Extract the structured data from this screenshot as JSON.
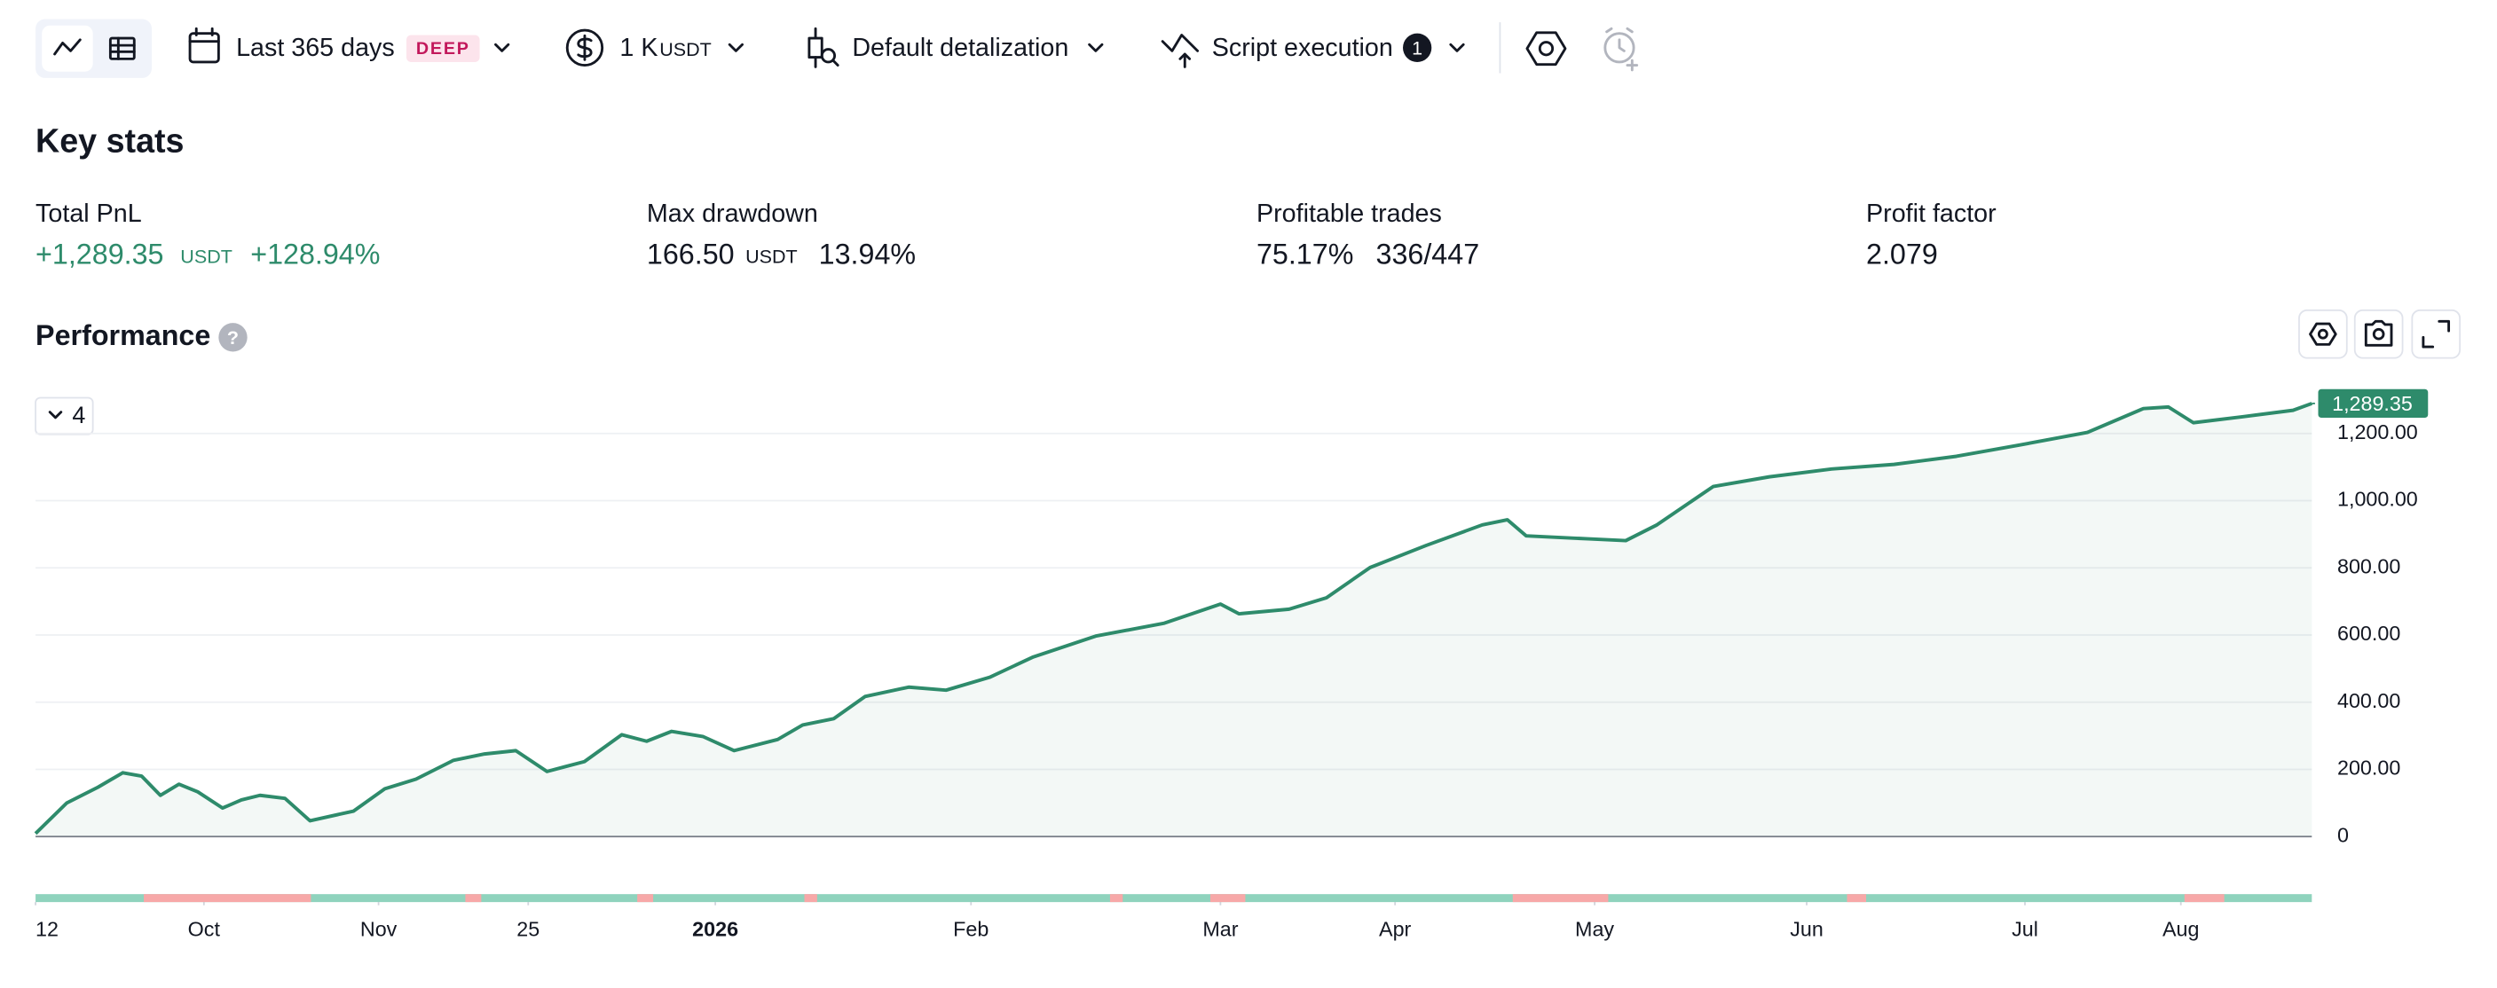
{
  "toolbar": {
    "period": "Last 365 days",
    "period_badge": "DEEP",
    "capital": "1 K",
    "capital_unit": "USDT",
    "detalization": "Default detalization",
    "script": "Script execution",
    "script_count": "1"
  },
  "key_stats": {
    "title": "Key stats",
    "items": [
      {
        "label": "Total PnL",
        "value": "+1,289.35",
        "unit": "USDT",
        "extra": "+128.94%"
      },
      {
        "label": "Max drawdown",
        "value": "166.50",
        "unit": "USDT",
        "extra": "13.94%"
      },
      {
        "label": "Profitable trades",
        "value": "75.17%",
        "extra": "336/447"
      },
      {
        "label": "Profit factor",
        "value": "2.079"
      }
    ]
  },
  "performance": {
    "title": "Performance",
    "series_toggle": "4"
  },
  "chart_data": {
    "type": "line",
    "color": "#2e8b6b",
    "grid": true,
    "xlim": [
      0,
      365
    ],
    "ylim": [
      -195,
      1330
    ],
    "xticks": [
      {
        "value": 0,
        "label": "12"
      },
      {
        "value": 27,
        "label": "Oct"
      },
      {
        "value": 55,
        "label": "Nov"
      },
      {
        "value": 79,
        "label": "25"
      },
      {
        "value": 109,
        "label": "2026"
      },
      {
        "value": 150,
        "label": "Feb"
      },
      {
        "value": 190,
        "label": "Mar"
      },
      {
        "value": 218,
        "label": "Apr"
      },
      {
        "value": 250,
        "label": "May"
      },
      {
        "value": 284,
        "label": "Jun"
      },
      {
        "value": 319,
        "label": "Jul"
      },
      {
        "value": 344,
        "label": "Aug"
      }
    ],
    "yticks": [
      0,
      {
        "value": 200,
        "label": "200.00"
      },
      {
        "value": 400,
        "label": "400.00"
      },
      {
        "value": 600,
        "label": "600.00"
      },
      {
        "value": 800,
        "label": "800.00"
      },
      {
        "value": 1000,
        "label": "1,000.00"
      },
      {
        "value": 1200,
        "label": "1,200.00"
      }
    ],
    "x": [
      0,
      5,
      10,
      14,
      17,
      20,
      23,
      26,
      30,
      33,
      36,
      40,
      44,
      51,
      56,
      61,
      67,
      72,
      77,
      82,
      88,
      94,
      98,
      102,
      107,
      112,
      119,
      123,
      128,
      133,
      140,
      146,
      153,
      160,
      170,
      181,
      190,
      193,
      201,
      207,
      214,
      223,
      232,
      236,
      239,
      249,
      255,
      260,
      269,
      278,
      288,
      298,
      308,
      318,
      329,
      338,
      342,
      346,
      354,
      362,
      365
    ],
    "values": [
      9,
      100,
      147,
      190,
      180,
      123,
      156,
      133,
      85,
      109,
      123,
      114,
      47,
      76,
      142,
      171,
      227,
      246,
      256,
      194,
      223,
      303,
      284,
      313,
      298,
      256,
      289,
      332,
      351,
      417,
      445,
      436,
      474,
      535,
      597,
      635,
      692,
      663,
      677,
      711,
      801,
      867,
      928,
      943,
      895,
      886,
      881,
      928,
      1042,
      1071,
      1094,
      1108,
      1132,
      1165,
      1203,
      1274,
      1279,
      1232,
      1250,
      1269,
      1289.35
    ],
    "value_labels": [
      null,
      null,
      null,
      null,
      null,
      null,
      null,
      null,
      null,
      null,
      null,
      null,
      null,
      null,
      null,
      null,
      null,
      null,
      null,
      null,
      null,
      null,
      null,
      null,
      null,
      null,
      null,
      null,
      null,
      null,
      null,
      null,
      null,
      null,
      null,
      null,
      null,
      null,
      null,
      null,
      null,
      null,
      null,
      null,
      null,
      null,
      null,
      null,
      null,
      null,
      null,
      null,
      null,
      null,
      null,
      null,
      null,
      null,
      null,
      null,
      "1,289.35"
    ]
  }
}
